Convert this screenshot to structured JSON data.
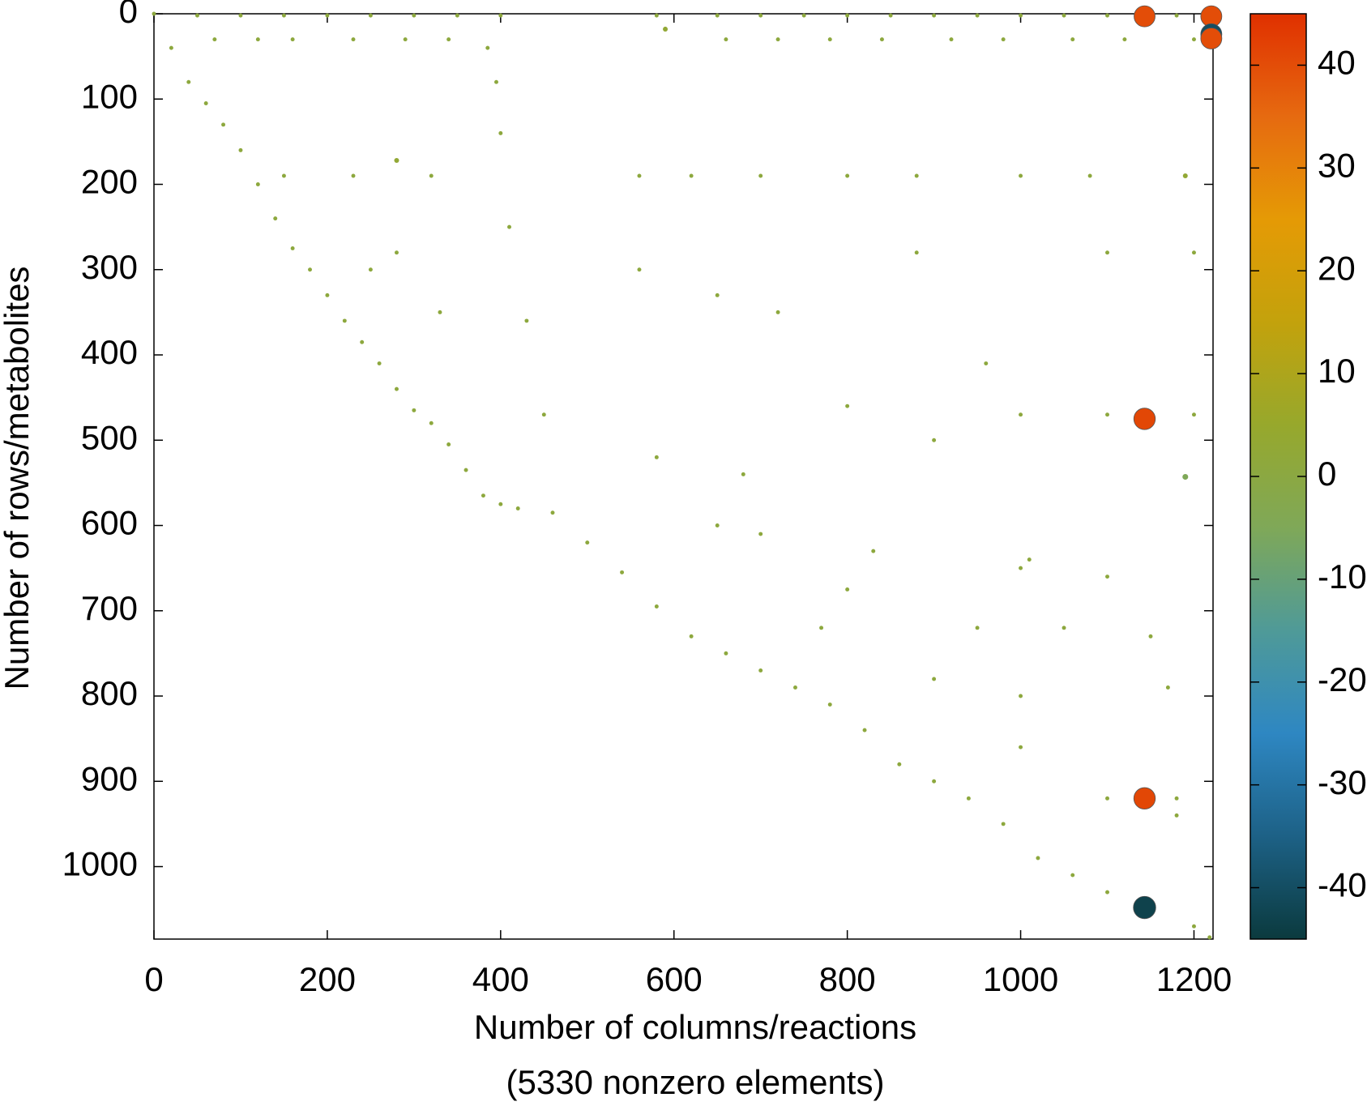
{
  "chart_data": {
    "type": "scatter",
    "xlabel": [
      "Number of columns/reactions",
      "(5330 nonzero elements)"
    ],
    "ylabel": "Number of rows/metabolites",
    "xlim": [
      0,
      1222
    ],
    "ylim": [
      0,
      1085
    ],
    "y_inverted": true,
    "xticks": [
      0,
      200,
      400,
      600,
      800,
      1000,
      1200
    ],
    "yticks": [
      0,
      100,
      200,
      300,
      400,
      500,
      600,
      700,
      800,
      900,
      1000
    ],
    "clim": [
      -45,
      45
    ],
    "cticks": [
      -40,
      -30,
      -20,
      -10,
      0,
      10,
      20,
      30,
      40
    ],
    "colormap": [
      "#0b3a3e",
      "#1d6186",
      "#2e87c2",
      "#4f9a98",
      "#7fa858",
      "#97a82c",
      "#c3a20c",
      "#e59a05",
      "#e66a10",
      "#e03000"
    ],
    "x": [
      0,
      20,
      40,
      60,
      80,
      100,
      120,
      140,
      160,
      180,
      200,
      220,
      240,
      260,
      280,
      300,
      320,
      340,
      360,
      380,
      400,
      420,
      460,
      500,
      540,
      580,
      620,
      660,
      700,
      740,
      780,
      820,
      860,
      900,
      940,
      980,
      1020,
      1060,
      1100,
      1150,
      1200,
      1218,
      385,
      395,
      400,
      410,
      430,
      450,
      50,
      100,
      150,
      200,
      250,
      300,
      350,
      400,
      580,
      650,
      700,
      750,
      800,
      850,
      900,
      950,
      1000,
      1050,
      1100,
      1180,
      70,
      120,
      160,
      230,
      290,
      340,
      660,
      720,
      780,
      840,
      920,
      980,
      1060,
      1120,
      1200,
      150,
      230,
      320,
      560,
      620,
      700,
      800,
      880,
      1000,
      1080,
      250,
      280,
      330,
      560,
      650,
      720,
      880,
      960,
      1100,
      1200,
      580,
      680,
      800,
      900,
      1000,
      1100,
      1200,
      650,
      700,
      830,
      1000,
      1100,
      800,
      770,
      950,
      1050,
      1150,
      900,
      1000,
      1170,
      1100,
      1180,
      1180,
      1000,
      1010,
      590,
      280,
      1190,
      1190,
      1143,
      1220,
      1220,
      1220,
      1143,
      1143,
      1143
    ],
    "y": [
      0,
      40,
      80,
      105,
      130,
      160,
      200,
      240,
      275,
      300,
      330,
      360,
      385,
      410,
      440,
      465,
      480,
      505,
      535,
      565,
      575,
      580,
      585,
      620,
      655,
      695,
      730,
      750,
      770,
      790,
      810,
      840,
      880,
      900,
      920,
      950,
      990,
      1010,
      1030,
      1055,
      1070,
      1083,
      40,
      80,
      140,
      250,
      360,
      470,
      2,
      2,
      2,
      2,
      2,
      2,
      2,
      2,
      2,
      2,
      2,
      2,
      2,
      2,
      2,
      2,
      2,
      2,
      2,
      2,
      30,
      30,
      30,
      30,
      30,
      30,
      30,
      30,
      30,
      30,
      30,
      30,
      30,
      30,
      30,
      190,
      190,
      190,
      190,
      190,
      190,
      190,
      190,
      190,
      190,
      300,
      280,
      350,
      300,
      330,
      350,
      280,
      410,
      280,
      280,
      520,
      540,
      460,
      500,
      470,
      470,
      470,
      600,
      610,
      630,
      650,
      660,
      675,
      720,
      720,
      720,
      730,
      780,
      800,
      790,
      920,
      920,
      940,
      860,
      640,
      18,
      172,
      543,
      190,
      3,
      3,
      24,
      29,
      475,
      920,
      1048
    ],
    "values": [
      1,
      1,
      1,
      1,
      1,
      1,
      1,
      1,
      1,
      1,
      1,
      1,
      1,
      1,
      1,
      1,
      1,
      1,
      1,
      1,
      1,
      1,
      1,
      1,
      1,
      1,
      1,
      1,
      1,
      1,
      1,
      1,
      1,
      1,
      1,
      1,
      1,
      1,
      1,
      1,
      1,
      1,
      1,
      1,
      1,
      1,
      1,
      1,
      1,
      1,
      1,
      1,
      1,
      1,
      1,
      1,
      1,
      1,
      1,
      1,
      1,
      1,
      1,
      1,
      1,
      1,
      1,
      1,
      1,
      1,
      1,
      1,
      1,
      1,
      1,
      1,
      1,
      1,
      1,
      1,
      1,
      1,
      1,
      1,
      1,
      1,
      1,
      1,
      1,
      1,
      1,
      1,
      1,
      1,
      1,
      1,
      1,
      1,
      1,
      1,
      1,
      1,
      1,
      1,
      1,
      1,
      1,
      1,
      1,
      1,
      1,
      1,
      1,
      1,
      1,
      1,
      1,
      1,
      1,
      1,
      1,
      1,
      1,
      1,
      1,
      1,
      1,
      1,
      3,
      3,
      -5,
      3,
      40,
      40,
      -40,
      40,
      41,
      41,
      -43
    ]
  }
}
